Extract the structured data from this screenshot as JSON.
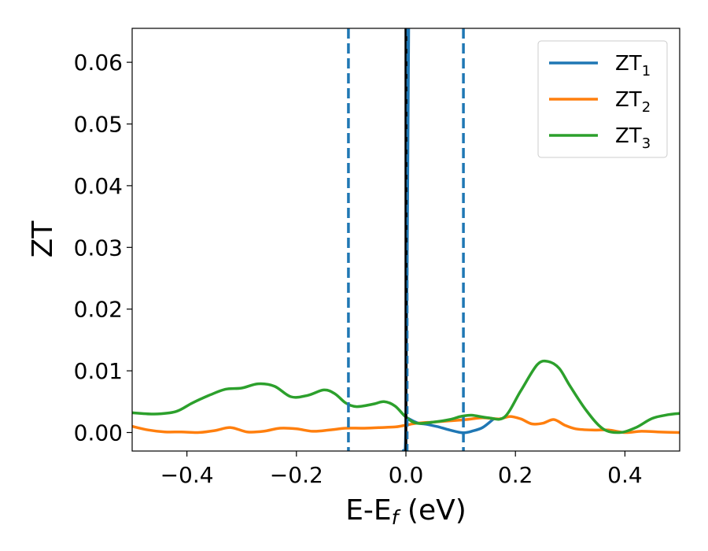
{
  "chart_data": {
    "type": "line",
    "xlabel": {
      "base": "E-E",
      "sub": "f",
      "suffix": " (eV)"
    },
    "ylabel": "ZT",
    "xlim": [
      -0.5,
      0.5
    ],
    "ylim": [
      -0.003,
      0.0655
    ],
    "xticks": [
      -0.4,
      -0.2,
      0.0,
      0.2,
      0.4
    ],
    "xtick_labels": [
      "−0.4",
      "−0.2",
      "0.0",
      "0.2",
      "0.4"
    ],
    "yticks": [
      0.0,
      0.01,
      0.02,
      0.03,
      0.04,
      0.05,
      0.06
    ],
    "ytick_labels": [
      "0.00",
      "0.01",
      "0.02",
      "0.03",
      "0.04",
      "0.05",
      "0.06"
    ],
    "grid": false,
    "legend_position": "top-right",
    "vertical_lines": [
      {
        "x": -0.105,
        "style": "dashed",
        "color": "#1f77b4"
      },
      {
        "x": 0.0,
        "style": "solid",
        "color": "#000000"
      },
      {
        "x": 0.105,
        "style": "dashed",
        "color": "#1f77b4"
      }
    ],
    "series": [
      {
        "name": "ZT",
        "name_sub": "1",
        "color": "#1f77b4",
        "x": [
          -0.005,
          0.0,
          0.005
        ],
        "y": [
          -0.003,
          0.0025,
          0.0655
        ]
      },
      {
        "name": "ZT",
        "name_sub": "1",
        "color": "#1f77b4",
        "x": [
          0.0,
          0.02,
          0.04,
          0.06,
          0.08,
          0.1,
          0.11,
          0.12,
          0.14,
          0.16
        ],
        "y": [
          0.0025,
          0.0016,
          0.0013,
          0.0009,
          0.0004,
          0.0,
          0.0,
          0.0002,
          0.0008,
          0.0022
        ]
      },
      {
        "name": "ZT",
        "name_sub": "2",
        "color": "#ff7f0e",
        "x": [
          -0.5,
          -0.47,
          -0.44,
          -0.41,
          -0.38,
          -0.35,
          -0.32,
          -0.29,
          -0.26,
          -0.23,
          -0.2,
          -0.17,
          -0.14,
          -0.11,
          -0.08,
          -0.05,
          -0.02,
          0.0,
          0.02,
          0.05,
          0.08,
          0.11,
          0.14,
          0.17,
          0.19,
          0.21,
          0.23,
          0.25,
          0.27,
          0.29,
          0.31,
          0.34,
          0.37,
          0.4,
          0.43,
          0.46,
          0.5
        ],
        "y": [
          0.001,
          0.0004,
          0.0001,
          0.0001,
          0.0,
          0.0003,
          0.0008,
          0.0001,
          0.0002,
          0.0007,
          0.0006,
          0.0002,
          0.0004,
          0.0007,
          0.0007,
          0.0008,
          0.0009,
          0.0012,
          0.0015,
          0.0017,
          0.0019,
          0.0021,
          0.0024,
          0.0022,
          0.0026,
          0.0022,
          0.0014,
          0.0015,
          0.0021,
          0.0012,
          0.0006,
          0.0004,
          0.0004,
          0.0,
          0.0002,
          0.0001,
          0.0
        ]
      },
      {
        "name": "ZT",
        "name_sub": "3",
        "color": "#2ca02c",
        "x": [
          -0.5,
          -0.46,
          -0.42,
          -0.39,
          -0.36,
          -0.33,
          -0.3,
          -0.27,
          -0.24,
          -0.21,
          -0.18,
          -0.15,
          -0.13,
          -0.11,
          -0.09,
          -0.06,
          -0.04,
          -0.02,
          0.0,
          0.02,
          0.05,
          0.08,
          0.1,
          0.12,
          0.15,
          0.18,
          0.21,
          0.24,
          0.26,
          0.28,
          0.3,
          0.33,
          0.36,
          0.39,
          0.42,
          0.45,
          0.48,
          0.5
        ],
        "y": [
          0.0032,
          0.003,
          0.0034,
          0.0048,
          0.006,
          0.007,
          0.0072,
          0.0079,
          0.0075,
          0.0058,
          0.006,
          0.0069,
          0.0063,
          0.0048,
          0.0042,
          0.0046,
          0.005,
          0.0043,
          0.0025,
          0.0015,
          0.0017,
          0.0021,
          0.0026,
          0.0028,
          0.0024,
          0.0025,
          0.0068,
          0.011,
          0.0115,
          0.0104,
          0.0075,
          0.0035,
          0.0006,
          0.0,
          0.0008,
          0.0023,
          0.0029,
          0.0031
        ]
      }
    ]
  }
}
